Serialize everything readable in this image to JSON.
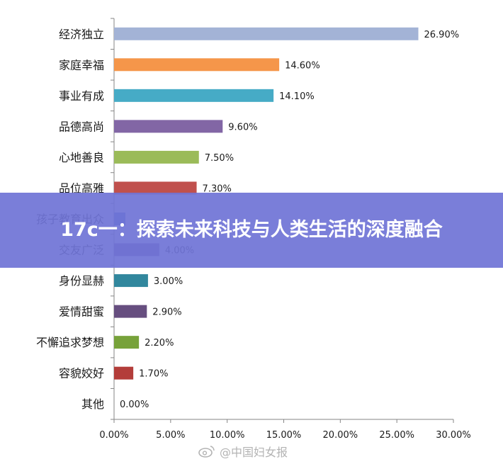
{
  "chart_data": {
    "type": "bar",
    "orientation": "horizontal",
    "categories": [
      "经济独立",
      "家庭幸福",
      "事业有成",
      "品德高尚",
      "心地善良",
      "品位高雅",
      "孩子教育出众",
      "交友广泛",
      "身份显赫",
      "爱情甜蜜",
      "不懈追求梦想",
      "容貌姣好",
      "其他"
    ],
    "values": [
      26.9,
      14.6,
      14.1,
      9.6,
      7.5,
      7.3,
      1.0,
      4.0,
      3.0,
      2.9,
      2.2,
      1.7,
      0.0
    ],
    "value_labels": [
      "26.90%",
      "14.60%",
      "14.10%",
      "9.60%",
      "7.50%",
      "7.30%",
      "",
      "4.00%",
      "3.00%",
      "2.90%",
      "2.20%",
      "1.70%",
      "0.00%"
    ],
    "colors": [
      "#a3b3d6",
      "#f5964a",
      "#46abc6",
      "#8266a5",
      "#9bbb59",
      "#c0504d",
      "#4472c4",
      "#6f579a",
      "#31879d",
      "#664e7f",
      "#77a23a",
      "#b33d3a",
      "#ffffff"
    ],
    "xlim": [
      0,
      30
    ],
    "xticks": [
      "0.00%",
      "5.00%",
      "10.00%",
      "15.00%",
      "20.00%",
      "25.00%",
      "30.00%"
    ],
    "grid": false,
    "title": "",
    "xlabel": "",
    "ylabel": ""
  },
  "banner": {
    "text": "17c一：探索未来科技与人类生活的深度融合"
  },
  "watermark": {
    "text": "@中国妇女报",
    "icon": "weibo-icon"
  }
}
